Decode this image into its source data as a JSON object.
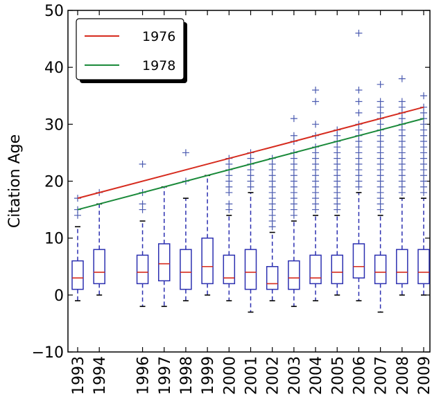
{
  "chart_data": {
    "type": "box",
    "ylabel": "Citation Age",
    "xlabel": "",
    "ylim": [
      -10,
      50
    ],
    "yticks": [
      -10,
      0,
      10,
      20,
      30,
      40,
      50
    ],
    "categories": [
      "1993",
      "1994",
      "1996",
      "1997",
      "1998",
      "1999",
      "2000",
      "2001",
      "2002",
      "2003",
      "2004",
      "2005",
      "2006",
      "2007",
      "2008",
      "2009"
    ],
    "years": [
      1993,
      1994,
      1996,
      1997,
      1998,
      1999,
      2000,
      2001,
      2002,
      2003,
      2004,
      2005,
      2006,
      2007,
      2008,
      2009
    ],
    "boxes": [
      {
        "year": 1993,
        "wlo": -1,
        "q1": 1,
        "median": 3,
        "q3": 6,
        "whi": 12,
        "outliers": [
          14,
          15,
          17
        ]
      },
      {
        "year": 1994,
        "wlo": 0,
        "q1": 2,
        "median": 4,
        "q3": 8,
        "whi": 16,
        "outliers": [
          18
        ]
      },
      {
        "year": 1996,
        "wlo": -2,
        "q1": 2,
        "median": 4,
        "q3": 7,
        "whi": 13,
        "outliers": [
          15,
          16,
          18,
          23
        ]
      },
      {
        "year": 1997,
        "wlo": -2,
        "q1": 2.5,
        "median": 5.5,
        "q3": 9,
        "whi": 19,
        "outliers": []
      },
      {
        "year": 1998,
        "wlo": -1,
        "q1": 1,
        "median": 4,
        "q3": 8,
        "whi": 17,
        "outliers": [
          20,
          25
        ]
      },
      {
        "year": 1999,
        "wlo": 0,
        "q1": 2,
        "median": 5,
        "q3": 10,
        "whi": 21,
        "outliers": []
      },
      {
        "year": 2000,
        "wlo": -1,
        "q1": 2,
        "median": 3,
        "q3": 7,
        "whi": 14,
        "outliers": [
          15,
          16,
          18,
          19,
          20,
          21,
          22,
          23,
          24
        ]
      },
      {
        "year": 2001,
        "wlo": -3,
        "q1": 1,
        "median": 4,
        "q3": 8,
        "whi": 18,
        "outliers": [
          19,
          20,
          21,
          22,
          23,
          24,
          25
        ]
      },
      {
        "year": 2002,
        "wlo": -1,
        "q1": 1,
        "median": 2,
        "q3": 5,
        "whi": 11,
        "outliers": [
          12,
          13,
          14,
          15,
          16,
          17,
          18,
          19,
          20,
          21,
          22,
          23,
          24
        ]
      },
      {
        "year": 2003,
        "wlo": -2,
        "q1": 1,
        "median": 3,
        "q3": 6,
        "whi": 13,
        "outliers": [
          14,
          15,
          16,
          17,
          18,
          19,
          20,
          21,
          22,
          23,
          24,
          25,
          27,
          28,
          31
        ]
      },
      {
        "year": 2004,
        "wlo": -1,
        "q1": 2,
        "median": 3,
        "q3": 7,
        "whi": 14,
        "outliers": [
          15,
          16,
          17,
          18,
          19,
          20,
          21,
          22,
          23,
          24,
          25,
          26,
          28,
          30,
          34,
          36
        ]
      },
      {
        "year": 2005,
        "wlo": 0,
        "q1": 2,
        "median": 4,
        "q3": 7,
        "whi": 14,
        "outliers": [
          15,
          16,
          17,
          18,
          19,
          20,
          21,
          22,
          23,
          24,
          25,
          26,
          27,
          28,
          29
        ]
      },
      {
        "year": 2006,
        "wlo": -1,
        "q1": 3,
        "median": 5,
        "q3": 9,
        "whi": 18,
        "outliers": [
          19,
          20,
          21,
          22,
          23,
          24,
          25,
          26,
          27,
          28,
          29,
          30,
          32,
          34,
          36,
          46
        ]
      },
      {
        "year": 2007,
        "wlo": -3,
        "q1": 2,
        "median": 4,
        "q3": 7,
        "whi": 14,
        "outliers": [
          15,
          16,
          17,
          18,
          19,
          20,
          21,
          22,
          23,
          24,
          25,
          26,
          27,
          28,
          29,
          30,
          31,
          32,
          33,
          34,
          37
        ]
      },
      {
        "year": 2008,
        "wlo": 0,
        "q1": 2,
        "median": 4,
        "q3": 8,
        "whi": 17,
        "outliers": [
          18,
          19,
          20,
          21,
          22,
          23,
          24,
          25,
          26,
          27,
          28,
          29,
          30,
          31,
          32,
          33,
          34,
          38
        ]
      },
      {
        "year": 2009,
        "wlo": 0,
        "q1": 2,
        "median": 4,
        "q3": 8,
        "whi": 17,
        "outliers": [
          18,
          19,
          20,
          21,
          22,
          23,
          24,
          25,
          26,
          27,
          28,
          29,
          30,
          31,
          32,
          33,
          35
        ]
      }
    ],
    "lines": [
      {
        "name": "1976",
        "color": "#d62b1e",
        "points": [
          [
            1993,
            17
          ],
          [
            2009,
            33
          ]
        ]
      },
      {
        "name": "1978",
        "color": "#1a8a3a",
        "points": [
          [
            1993,
            15
          ],
          [
            2009,
            31
          ]
        ]
      }
    ],
    "legend_position": "top-left",
    "box_color": "#2b2fb0",
    "median_color": "#d62b1e",
    "outlier_color": "#4a5ab0"
  }
}
